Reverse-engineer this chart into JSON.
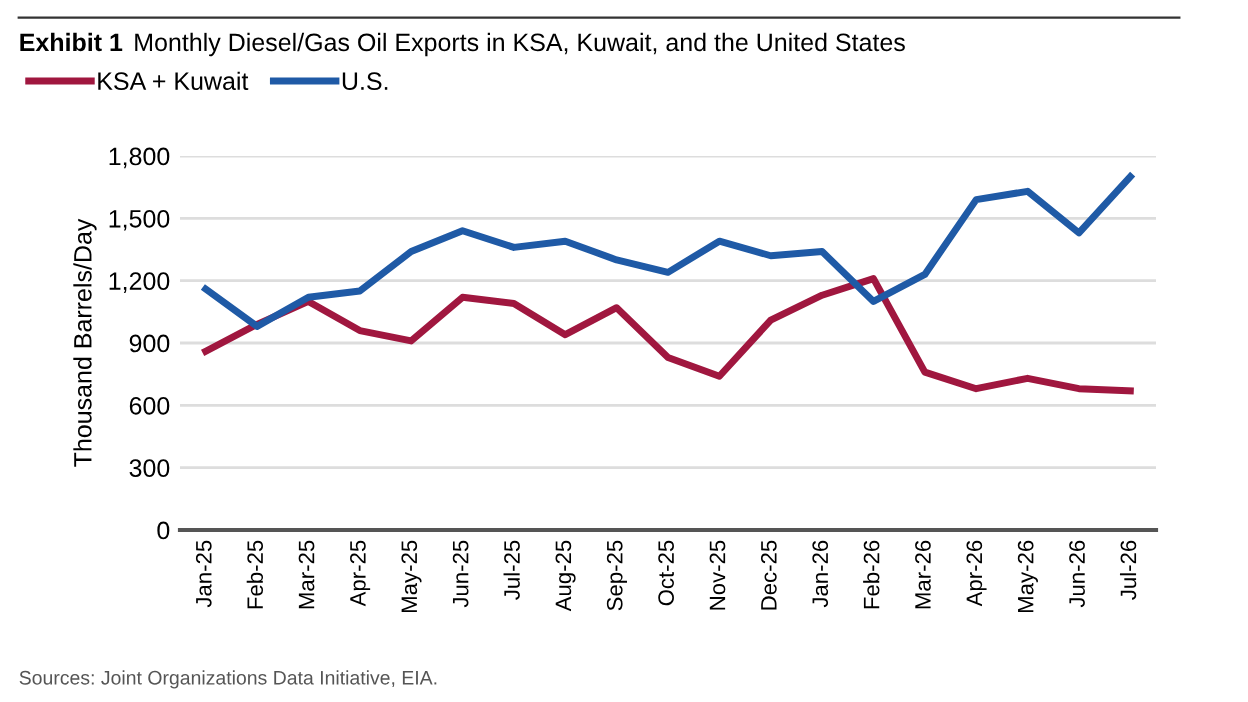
{
  "chart_data": {
    "type": "line",
    "title": "Exhibit 1",
    "subtitle": "Monthly Diesel/Gas Oil Exports in KSA, Kuwait, and the United States",
    "ylabel": "Thousand Barrels/Day",
    "categories": [
      "Jan-25",
      "Feb-25",
      "Mar-25",
      "Apr-25",
      "May-25",
      "Jun-25",
      "Jul-25",
      "Aug-25",
      "Sep-25",
      "Oct-25",
      "Nov-25",
      "Dec-25",
      "Jan-26",
      "Feb-26",
      "Mar-26",
      "Apr-26",
      "May-26",
      "Jun-26",
      "Jul-26"
    ],
    "series": [
      {
        "name": "KSA + Kuwait",
        "color": "#a0173f",
        "values": [
          860,
          990,
          1100,
          960,
          910,
          1120,
          1090,
          940,
          1070,
          830,
          740,
          1010,
          1130,
          1210,
          760,
          680,
          730,
          680,
          670
        ]
      },
      {
        "name": "U.S.",
        "color": "#1f5aa6",
        "values": [
          1160,
          980,
          1120,
          1150,
          1340,
          1440,
          1360,
          1390,
          1300,
          1240,
          1390,
          1320,
          1340,
          1100,
          1230,
          1590,
          1630,
          1430,
          1700
        ]
      }
    ],
    "ylim": [
      0,
      1800
    ],
    "yticks": [
      0,
      {
        "value": 300,
        "label": "300"
      },
      600,
      900,
      {
        "value": 1200,
        "label": "1,200"
      },
      {
        "value": 1500,
        "label": "1,500"
      },
      {
        "value": 1800,
        "label": "1,800"
      }
    ],
    "grid": "y",
    "legend": "top left",
    "marker": "none",
    "line_style": "solid",
    "annotations": [
      "Sources: Joint Organizations Data Initiative, EIA."
    ]
  }
}
